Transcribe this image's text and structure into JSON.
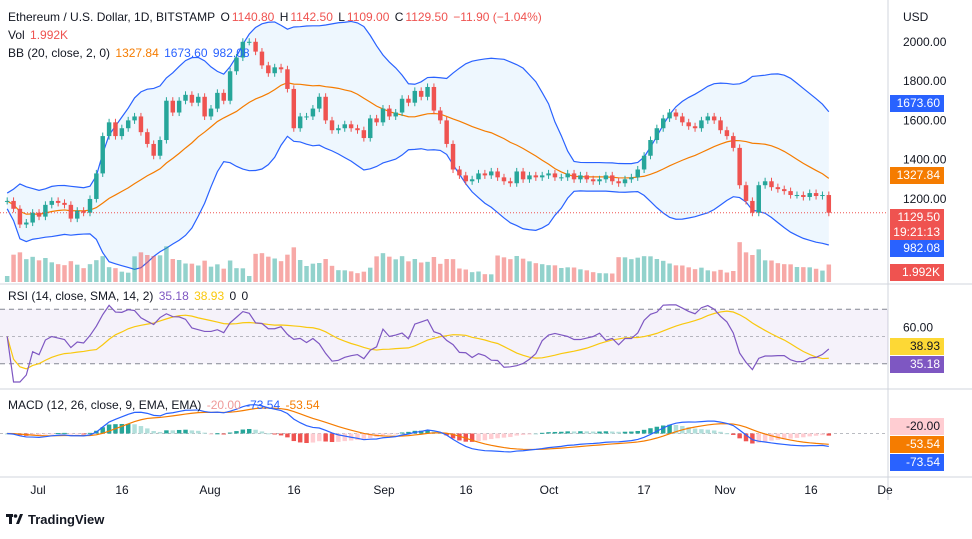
{
  "header": {
    "symbol": "Ethereum / U.S. Dollar, 1D, BITSTAMP",
    "open_label": "O",
    "open": "1140.80",
    "high_label": "H",
    "high": "1142.50",
    "low_label": "L",
    "low": "1109.00",
    "close_label": "C",
    "close": "1129.50",
    "change": "−11.90 (−1.04%)"
  },
  "vol_legend": {
    "label": "Vol",
    "value": "1.992K"
  },
  "bb_legend": {
    "label": "BB (20, close, 2, 0)",
    "basis": "1327.84",
    "upper": "1673.60",
    "lower": "982.08"
  },
  "rsi_legend": {
    "label": "RSI (14, close, SMA, 14, 2)",
    "rsi": "35.18",
    "sma": "38.93",
    "v1": "0",
    "v2": "0"
  },
  "macd_legend": {
    "label": "MACD (12, 26, close, 9, EMA, EMA)",
    "hist": "-20.00",
    "macd": "-73.54",
    "signal": "-53.54"
  },
  "currency": "USD",
  "tags": {
    "upper": "1673.60",
    "basis": "1327.84",
    "price": "1129.50",
    "countdown": "19:21:13",
    "lower": "982.08",
    "volume": "1.992K",
    "rsi_sma": "38.93",
    "rsi": "35.18",
    "macd_hist": "-20.00",
    "macd_signal": "-53.54",
    "macd": "-73.54"
  },
  "brand": "TradingView",
  "colors": {
    "up": "#26a69a",
    "down": "#ef5350",
    "bb_band": "#2962ff",
    "bb_basis": "#f57c00",
    "rsi": "#7e57c2",
    "rsi_sma": "#f9c80e"
  },
  "chart_data": {
    "type": "candlestick",
    "title": "Ethereum / U.S. Dollar, 1D, BITSTAMP",
    "y_axis": {
      "unit": "USD",
      "ticks": [
        1200,
        1400,
        1600,
        1800,
        2000
      ],
      "tick_labels": [
        "1200.00",
        "1400.00",
        "1600.00",
        "1800.00",
        "2000.00"
      ],
      "range": [
        930,
        2060
      ]
    },
    "x_axis": {
      "tick_labels": [
        "Jul",
        "16",
        "Aug",
        "16",
        "Sep",
        "16",
        "Oct",
        "17",
        "Nov",
        "16",
        "De"
      ]
    },
    "last_price": 1129.5,
    "close_series": [
      1190,
      1150,
      1070,
      1080,
      1130,
      1110,
      1170,
      1190,
      1180,
      1170,
      1100,
      1140,
      1130,
      1200,
      1330,
      1520,
      1590,
      1520,
      1560,
      1600,
      1620,
      1540,
      1480,
      1420,
      1500,
      1700,
      1640,
      1700,
      1730,
      1690,
      1720,
      1620,
      1660,
      1740,
      1700,
      1850,
      1920,
      2000,
      2000,
      1950,
      1880,
      1840,
      1870,
      1860,
      1760,
      1560,
      1620,
      1620,
      1660,
      1720,
      1600,
      1550,
      1560,
      1580,
      1560,
      1550,
      1510,
      1610,
      1590,
      1660,
      1620,
      1640,
      1710,
      1690,
      1750,
      1720,
      1770,
      1650,
      1600,
      1480,
      1350,
      1320,
      1290,
      1300,
      1330,
      1320,
      1340,
      1310,
      1290,
      1280,
      1340,
      1300,
      1320,
      1310,
      1320,
      1330,
      1310,
      1310,
      1330,
      1300,
      1320,
      1300,
      1290,
      1300,
      1320,
      1290,
      1280,
      1300,
      1310,
      1350,
      1420,
      1500,
      1560,
      1610,
      1640,
      1620,
      1590,
      1570,
      1560,
      1600,
      1620,
      1600,
      1550,
      1520,
      1460,
      1270,
      1190,
      1130,
      1270,
      1290,
      1260,
      1250,
      1240,
      1220,
      1220,
      1210,
      1230,
      1215,
      1220,
      1130
    ],
    "bollinger": {
      "length": 20,
      "basis_last": 1327.84,
      "upper_last": 1673.6,
      "lower_last": 982.08
    },
    "volume_last": "1.992K",
    "rsi": {
      "last": 35.18,
      "sma_last": 38.93,
      "ticks": [
        60
      ],
      "tick_labels": [
        "60.00"
      ],
      "range": [
        0,
        100
      ]
    },
    "macd": {
      "hist_last": -20.0,
      "macd_last": -73.54,
      "signal_last": -53.54
    }
  }
}
